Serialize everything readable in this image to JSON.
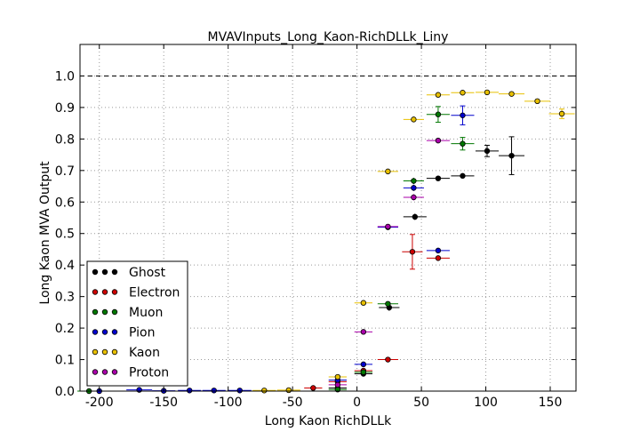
{
  "chart_data": {
    "type": "scatter",
    "title": "MVAVInputs_Long_Kaon-RichDLLk_Liny",
    "xlabel": "Long Kaon RichDLLk",
    "ylabel": "Long Kaon MVA Output",
    "xlim": [
      -215,
      170
    ],
    "ylim": [
      0.0,
      1.1
    ],
    "xticks": [
      -200,
      -150,
      -100,
      -50,
      0,
      50,
      100,
      150
    ],
    "yticks": [
      0.0,
      0.1,
      0.2,
      0.3,
      0.4,
      0.5,
      0.6,
      0.7,
      0.8,
      0.9,
      1.0
    ],
    "grid": true,
    "reference_line": 1.0,
    "legend_position": "lower-left",
    "series": [
      {
        "name": "Ghost",
        "color": "#000000",
        "points": [
          {
            "x": -15,
            "y": 0.01,
            "xerr": 7,
            "yerr": 0.003
          },
          {
            "x": 5,
            "y": 0.055,
            "xerr": 7,
            "yerr": 0.005
          },
          {
            "x": 25,
            "y": 0.265,
            "xerr": 8,
            "yerr": 0.01
          },
          {
            "x": 45,
            "y": 0.553,
            "xerr": 9,
            "yerr": 0.01
          },
          {
            "x": 63,
            "y": 0.675,
            "xerr": 9,
            "yerr": 0.008
          },
          {
            "x": 82,
            "y": 0.683,
            "xerr": 9,
            "yerr": 0.008
          },
          {
            "x": 101,
            "y": 0.762,
            "xerr": 9,
            "yerr": 0.018
          },
          {
            "x": 120,
            "y": 0.747,
            "xerr": 10,
            "yerr": 0.06
          }
        ]
      },
      {
        "name": "Electron",
        "color": "#cc0000",
        "points": [
          {
            "x": -34,
            "y": 0.01,
            "xerr": 7,
            "yerr": 0.003
          },
          {
            "x": -15,
            "y": 0.03,
            "xerr": 7,
            "yerr": 0.004
          },
          {
            "x": 5,
            "y": 0.065,
            "xerr": 7,
            "yerr": 0.005
          },
          {
            "x": 24,
            "y": 0.1,
            "xerr": 8,
            "yerr": 0.005
          },
          {
            "x": 43,
            "y": 0.442,
            "xerr": 8,
            "yerr": 0.055
          },
          {
            "x": 63,
            "y": 0.422,
            "xerr": 9,
            "yerr": 0.008
          }
        ]
      },
      {
        "name": "Muon",
        "color": "#007700",
        "points": [
          {
            "x": -208,
            "y": 0.0,
            "xerr": 9,
            "yerr": 0.002
          },
          {
            "x": -15,
            "y": 0.005,
            "xerr": 7,
            "yerr": 0.003
          },
          {
            "x": 5,
            "y": 0.06,
            "xerr": 7,
            "yerr": 0.005
          },
          {
            "x": 24,
            "y": 0.277,
            "xerr": 8,
            "yerr": 0.008
          },
          {
            "x": 44,
            "y": 0.667,
            "xerr": 8,
            "yerr": 0.01
          },
          {
            "x": 63,
            "y": 0.878,
            "xerr": 9,
            "yerr": 0.025
          },
          {
            "x": 82,
            "y": 0.785,
            "xerr": 9,
            "yerr": 0.02
          }
        ]
      },
      {
        "name": "Pion",
        "color": "#0000cc",
        "points": [
          {
            "x": -200,
            "y": 0.0,
            "xerr": 9,
            "yerr": 0.002
          },
          {
            "x": -169,
            "y": 0.004,
            "xerr": 10,
            "yerr": 0.002
          },
          {
            "x": -150,
            "y": 0.001,
            "xerr": 9,
            "yerr": 0.002
          },
          {
            "x": -130,
            "y": 0.002,
            "xerr": 9,
            "yerr": 0.002
          },
          {
            "x": -111,
            "y": 0.002,
            "xerr": 9,
            "yerr": 0.002
          },
          {
            "x": -91,
            "y": 0.002,
            "xerr": 9,
            "yerr": 0.002
          },
          {
            "x": -15,
            "y": 0.035,
            "xerr": 7,
            "yerr": 0.004
          },
          {
            "x": 5,
            "y": 0.085,
            "xerr": 7,
            "yerr": 0.005
          },
          {
            "x": 24,
            "y": 0.52,
            "xerr": 8,
            "yerr": 0.008
          },
          {
            "x": 44,
            "y": 0.645,
            "xerr": 8,
            "yerr": 0.01
          },
          {
            "x": 63,
            "y": 0.446,
            "xerr": 9,
            "yerr": 0.008
          },
          {
            "x": 82,
            "y": 0.875,
            "xerr": 9,
            "yerr": 0.03
          }
        ]
      },
      {
        "name": "Kaon",
        "color": "#e8c000",
        "points": [
          {
            "x": -72,
            "y": 0.002,
            "xerr": 9,
            "yerr": 0.002
          },
          {
            "x": -53,
            "y": 0.003,
            "xerr": 9,
            "yerr": 0.002
          },
          {
            "x": -15,
            "y": 0.045,
            "xerr": 7,
            "yerr": 0.004
          },
          {
            "x": 5,
            "y": 0.28,
            "xerr": 7,
            "yerr": 0.006
          },
          {
            "x": 24,
            "y": 0.697,
            "xerr": 8,
            "yerr": 0.008
          },
          {
            "x": 44,
            "y": 0.862,
            "xerr": 8,
            "yerr": 0.008
          },
          {
            "x": 63,
            "y": 0.94,
            "xerr": 9,
            "yerr": 0.006
          },
          {
            "x": 82,
            "y": 0.947,
            "xerr": 9,
            "yerr": 0.006
          },
          {
            "x": 101,
            "y": 0.948,
            "xerr": 9,
            "yerr": 0.006
          },
          {
            "x": 120,
            "y": 0.943,
            "xerr": 10,
            "yerr": 0.006
          },
          {
            "x": 140,
            "y": 0.92,
            "xerr": 10,
            "yerr": 0.008
          },
          {
            "x": 159,
            "y": 0.88,
            "xerr": 10,
            "yerr": 0.015
          }
        ]
      },
      {
        "name": "Proton",
        "color": "#aa00aa",
        "points": [
          {
            "x": -15,
            "y": 0.02,
            "xerr": 7,
            "yerr": 0.004
          },
          {
            "x": 5,
            "y": 0.188,
            "xerr": 7,
            "yerr": 0.006
          },
          {
            "x": 24,
            "y": 0.522,
            "xerr": 8,
            "yerr": 0.008
          },
          {
            "x": 44,
            "y": 0.615,
            "xerr": 8,
            "yerr": 0.01
          },
          {
            "x": 63,
            "y": 0.795,
            "xerr": 9,
            "yerr": 0.008
          }
        ]
      }
    ]
  }
}
